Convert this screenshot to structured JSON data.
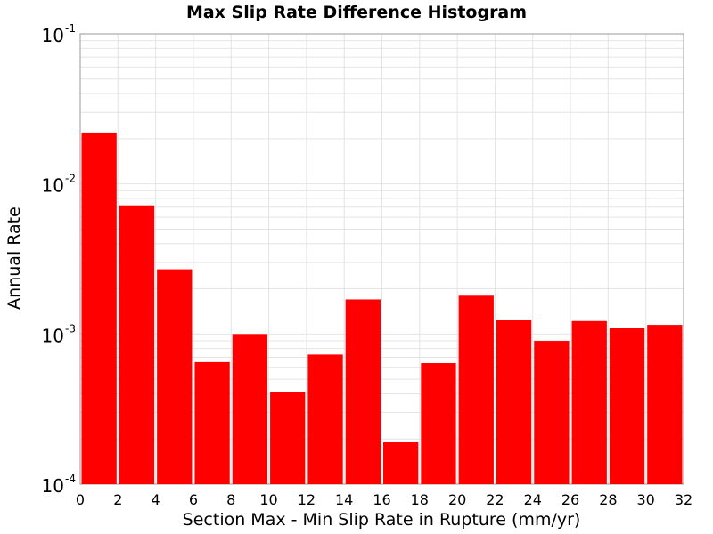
{
  "chart_data": {
    "type": "bar",
    "title": "Max Slip Rate Difference Histogram",
    "xlabel": "Section Max - Min Slip Rate in Rupture (mm/yr)",
    "ylabel": "Annual Rate",
    "xlim": [
      0,
      32
    ],
    "ylim": [
      0.0001,
      0.1
    ],
    "yscale": "log",
    "grid": true,
    "bar_color": "#ff0000",
    "x_ticks": [
      "0",
      "2",
      "4",
      "6",
      "8",
      "10",
      "12",
      "14",
      "16",
      "18",
      "20",
      "22",
      "24",
      "26",
      "28",
      "30",
      "32"
    ],
    "y_ticks": [
      {
        "base": "10",
        "exp": "-4",
        "value": 0.0001
      },
      {
        "base": "10",
        "exp": "-3",
        "value": 0.001
      },
      {
        "base": "10",
        "exp": "-2",
        "value": 0.01
      },
      {
        "base": "10",
        "exp": "-1",
        "value": 0.1
      }
    ],
    "bins": [
      {
        "x_start": 0,
        "x_end": 2,
        "value": 0.022
      },
      {
        "x_start": 2,
        "x_end": 4,
        "value": 0.0072
      },
      {
        "x_start": 4,
        "x_end": 6,
        "value": 0.0027
      },
      {
        "x_start": 6,
        "x_end": 8,
        "value": 0.00065
      },
      {
        "x_start": 8,
        "x_end": 10,
        "value": 0.001
      },
      {
        "x_start": 10,
        "x_end": 12,
        "value": 0.00041
      },
      {
        "x_start": 12,
        "x_end": 14,
        "value": 0.00073
      },
      {
        "x_start": 14,
        "x_end": 16,
        "value": 0.0017
      },
      {
        "x_start": 16,
        "x_end": 18,
        "value": 0.00019
      },
      {
        "x_start": 18,
        "x_end": 20,
        "value": 0.00064
      },
      {
        "x_start": 20,
        "x_end": 22,
        "value": 0.0018
      },
      {
        "x_start": 22,
        "x_end": 24,
        "value": 0.00125
      },
      {
        "x_start": 24,
        "x_end": 26,
        "value": 0.0009
      },
      {
        "x_start": 26,
        "x_end": 28,
        "value": 0.00122
      },
      {
        "x_start": 28,
        "x_end": 30,
        "value": 0.0011
      },
      {
        "x_start": 30,
        "x_end": 32,
        "value": 0.00115
      }
    ]
  }
}
